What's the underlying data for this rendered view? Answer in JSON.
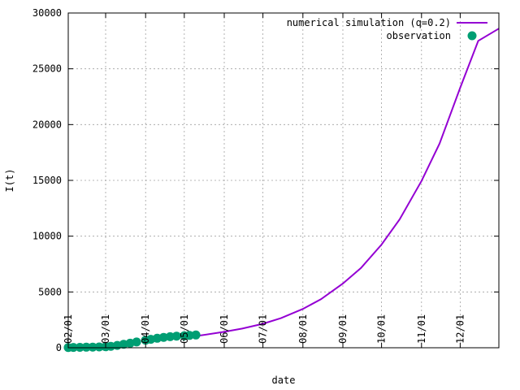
{
  "chart_data": {
    "type": "line",
    "title": "",
    "xlabel": "date",
    "ylabel": "I(t)",
    "ylim": [
      0,
      30000
    ],
    "yticks": [
      "0",
      "5000",
      "10000",
      "15000",
      "20000",
      "25000",
      "30000"
    ],
    "xticks": [
      "02/01",
      "03/01",
      "04/01",
      "05/01",
      "06/01",
      "07/01",
      "08/01",
      "09/01",
      "10/01",
      "11/01",
      "12/01"
    ],
    "xlim": [
      "2020-02-01",
      "2020-12-31"
    ],
    "grid": true,
    "legend_position": "top-right",
    "series": [
      {
        "name": "numerical simulation (q=0.2)",
        "style": "line",
        "color": "#9400d3",
        "x": [
          "2020-05-01",
          "2020-05-15",
          "2020-06-01",
          "2020-06-15",
          "2020-07-01",
          "2020-07-15",
          "2020-08-01",
          "2020-08-15",
          "2020-09-01",
          "2020-09-15",
          "2020-10-01",
          "2020-10-15",
          "2020-11-01",
          "2020-11-15",
          "2020-12-01",
          "2020-12-15",
          "2020-12-31"
        ],
        "y": [
          900,
          1130,
          1430,
          1720,
          2150,
          2650,
          3480,
          4350,
          5750,
          7140,
          9250,
          11500,
          14950,
          18300,
          23300,
          27500,
          28600
        ]
      },
      {
        "name": "observation",
        "style": "points",
        "color": "#009e73",
        "x": [
          "2020-02-01",
          "2020-02-05",
          "2020-02-10",
          "2020-02-15",
          "2020-02-20",
          "2020-02-25",
          "2020-03-01",
          "2020-03-05",
          "2020-03-10",
          "2020-03-15",
          "2020-03-20",
          "2020-03-25",
          "2020-04-01",
          "2020-04-05",
          "2020-04-10",
          "2020-04-15",
          "2020-04-20",
          "2020-04-25",
          "2020-05-01",
          "2020-05-05",
          "2020-05-10"
        ],
        "y": [
          20,
          30,
          40,
          50,
          60,
          70,
          90,
          130,
          210,
          310,
          410,
          520,
          680,
          760,
          850,
          930,
          990,
          1040,
          1080,
          1110,
          1140
        ]
      }
    ]
  }
}
